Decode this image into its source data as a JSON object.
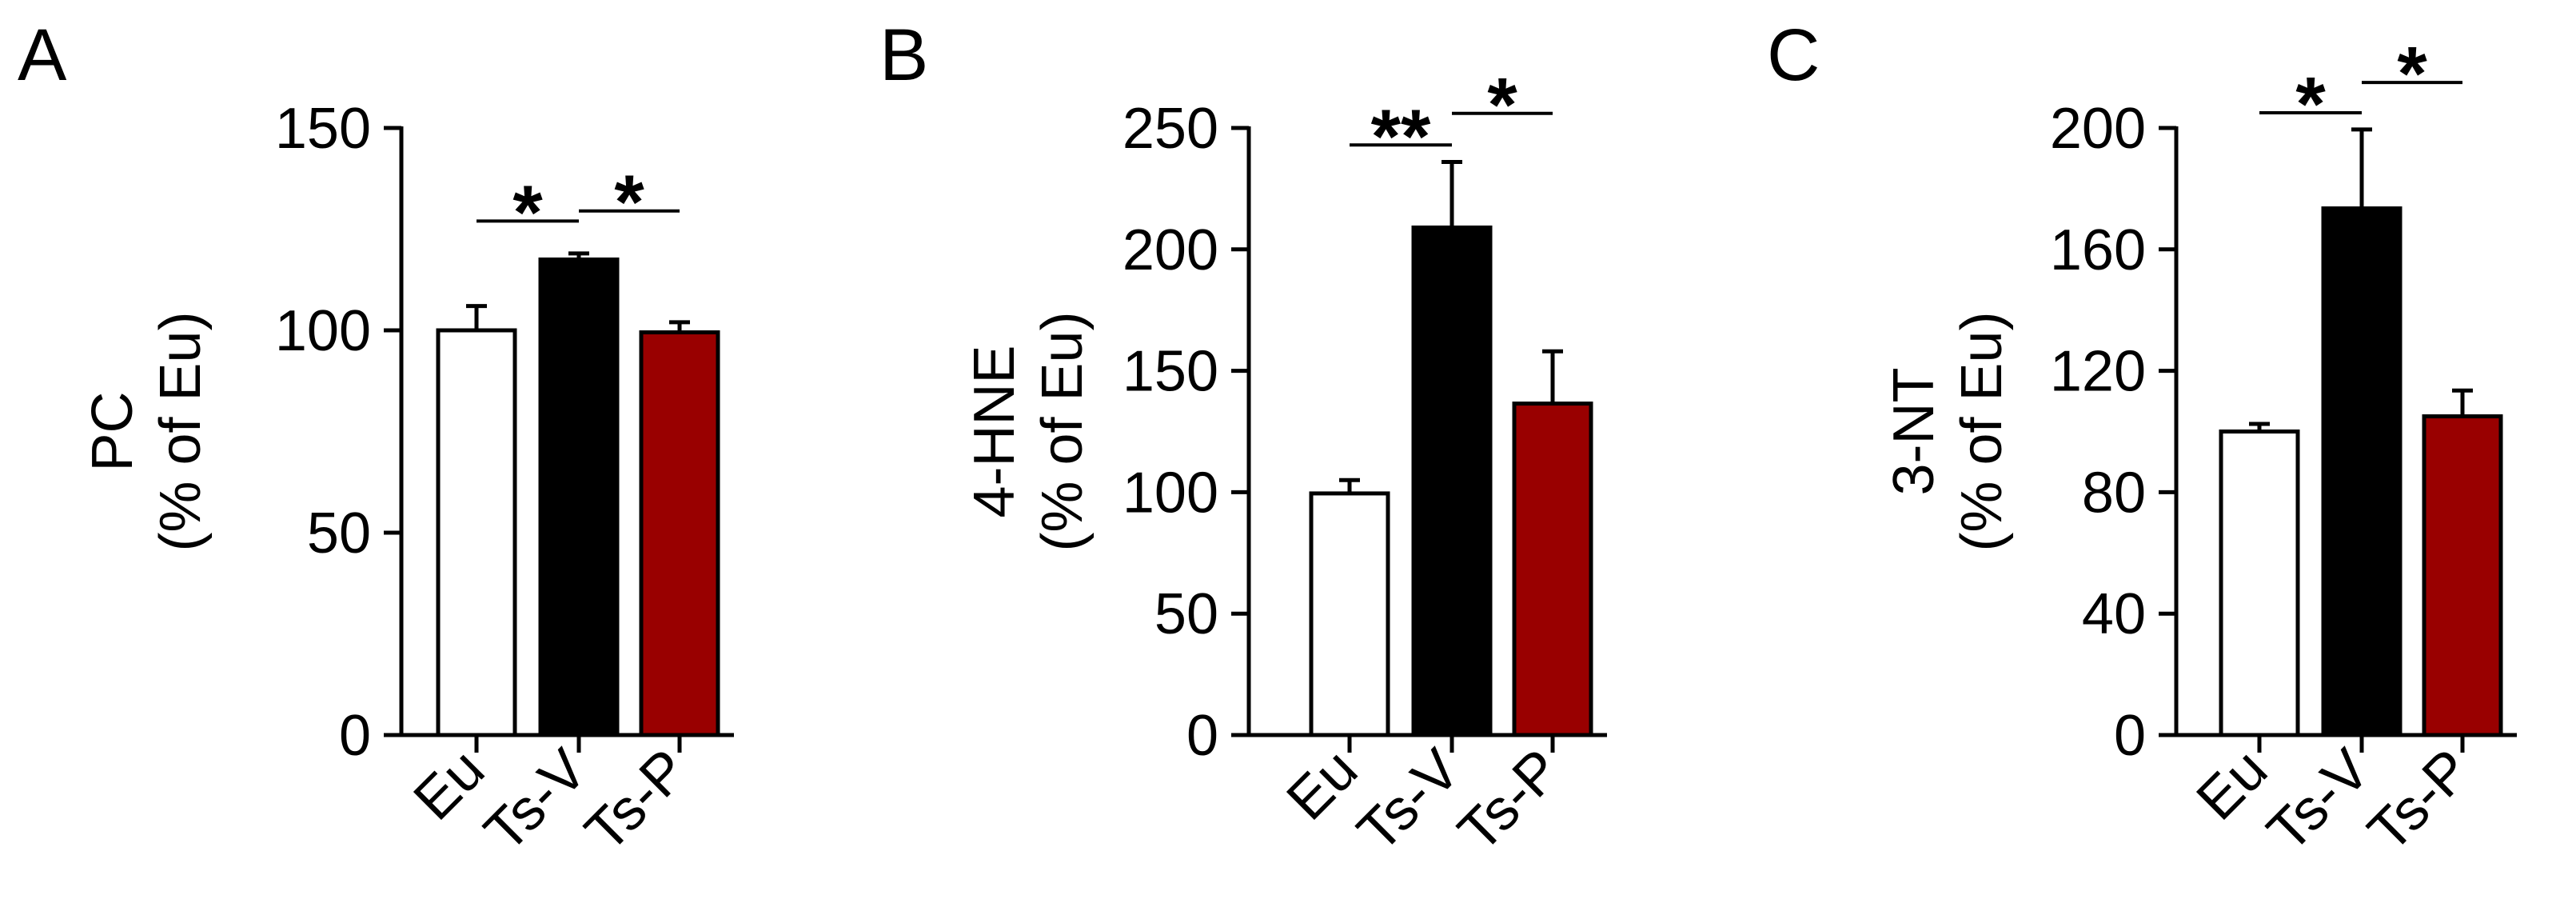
{
  "chart_data": [
    {
      "type": "bar",
      "panel": "A",
      "ylabel": [
        "PC",
        "(% of Eu)"
      ],
      "categories": [
        "Eu",
        "Ts-V",
        "Ts-P"
      ],
      "values": [
        100,
        117.5,
        99.5
      ],
      "errors": [
        6,
        1.5,
        2.5
      ],
      "ylim": [
        0,
        150
      ],
      "yticks": [
        0,
        50,
        100,
        150
      ],
      "significance": [
        {
          "from": 0,
          "to": 1,
          "label": "*",
          "y": 127
        },
        {
          "from": 1,
          "to": 2,
          "label": "*",
          "y": 129.5
        }
      ]
    },
    {
      "type": "bar",
      "panel": "B",
      "ylabel": [
        "4-HNE",
        "(% of Eu)"
      ],
      "categories": [
        "Eu",
        "Ts-V",
        "Ts-P"
      ],
      "values": [
        99.5,
        209,
        136.5
      ],
      "errors": [
        5.5,
        27,
        21.5
      ],
      "ylim": [
        0,
        250
      ],
      "yticks": [
        0,
        50,
        100,
        150,
        200,
        250
      ],
      "significance": [
        {
          "from": 0,
          "to": 1,
          "label": "**",
          "y": 243
        },
        {
          "from": 1,
          "to": 2,
          "label": "*",
          "y": 256
        }
      ]
    },
    {
      "type": "bar",
      "panel": "C",
      "ylabel": [
        "3-NT",
        "(% of Eu)"
      ],
      "categories": [
        "Eu",
        "Ts-V",
        "Ts-P"
      ],
      "values": [
        100,
        173.5,
        105
      ],
      "errors": [
        2.5,
        26,
        8.5
      ],
      "ylim": [
        0,
        200
      ],
      "yticks": [
        0,
        40,
        80,
        120,
        160,
        200
      ],
      "significance": [
        {
          "from": 0,
          "to": 1,
          "label": "*",
          "y": 205
        },
        {
          "from": 1,
          "to": 2,
          "label": "*",
          "y": 215
        }
      ]
    }
  ],
  "colors": {
    "bars": [
      "#ffffff",
      "#000000",
      "#990000"
    ],
    "stroke": "#000000"
  }
}
